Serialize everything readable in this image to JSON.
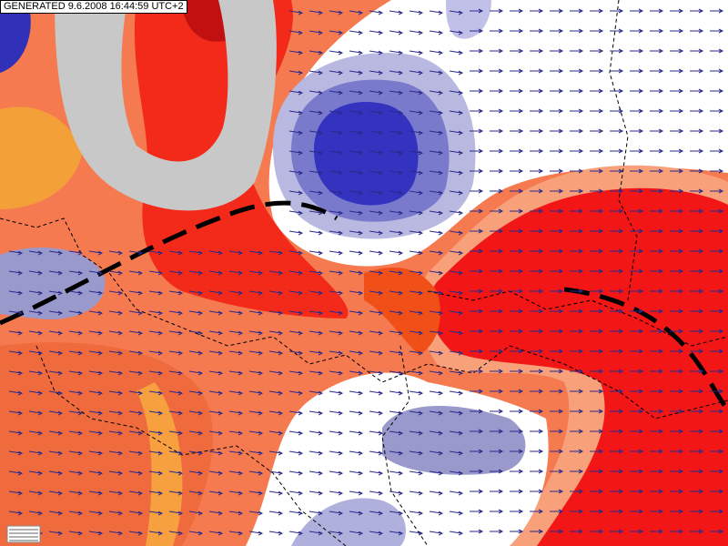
{
  "header": {
    "generated": "GENERATED 9.6.2008 16:44:59 UTC+2"
  }
}
